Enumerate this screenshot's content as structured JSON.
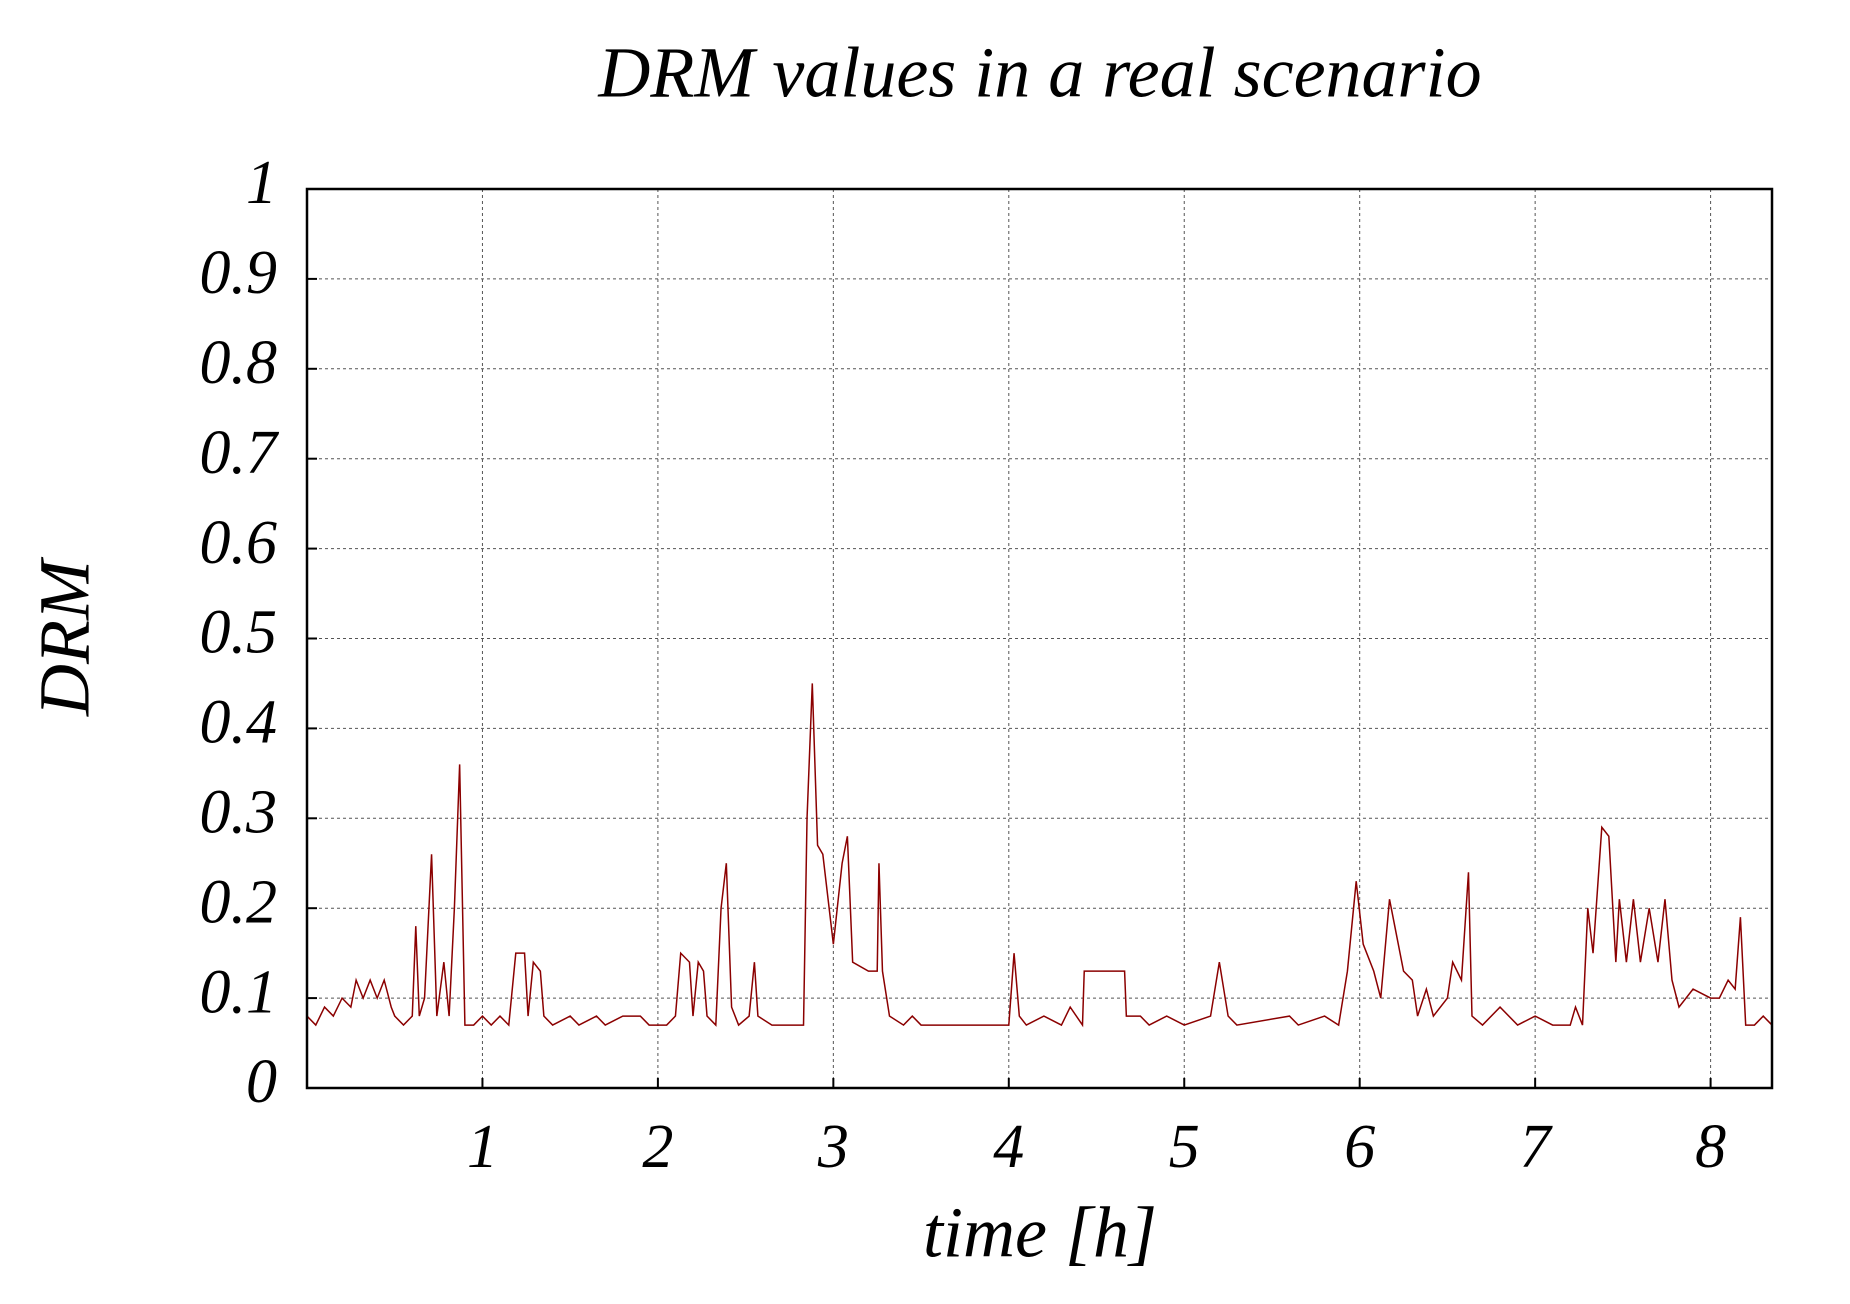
{
  "chart_data": {
    "type": "line",
    "title": "DRM values in a real scenario",
    "x_label": "time [h]",
    "y_label": "DRM",
    "xlim": [
      0,
      8.35
    ],
    "ylim": [
      0,
      1
    ],
    "xticks": [
      1,
      2,
      3,
      4,
      5,
      6,
      7,
      8
    ],
    "yticks": [
      0,
      0.1,
      0.2,
      0.3,
      0.4,
      0.5,
      0.6,
      0.7,
      0.8,
      0.9,
      1
    ],
    "grid": true,
    "x": [
      0,
      0.05,
      0.1,
      0.15,
      0.2,
      0.25,
      0.28,
      0.32,
      0.36,
      0.4,
      0.44,
      0.48,
      0.5,
      0.55,
      0.6,
      0.62,
      0.64,
      0.67,
      0.71,
      0.74,
      0.78,
      0.81,
      0.84,
      0.87,
      0.9,
      0.95,
      1.0,
      1.05,
      1.1,
      1.15,
      1.19,
      1.24,
      1.26,
      1.29,
      1.33,
      1.35,
      1.4,
      1.5,
      1.55,
      1.65,
      1.7,
      1.8,
      1.9,
      1.95,
      2.05,
      2.1,
      2.13,
      2.18,
      2.2,
      2.23,
      2.26,
      2.28,
      2.33,
      2.36,
      2.39,
      2.42,
      2.46,
      2.52,
      2.55,
      2.57,
      2.65,
      2.75,
      2.83,
      2.85,
      2.88,
      2.91,
      2.94,
      2.97,
      3.0,
      3.05,
      3.08,
      3.11,
      3.2,
      3.25,
      3.26,
      3.28,
      3.32,
      3.4,
      3.45,
      3.5,
      3.8,
      4.0,
      4.03,
      4.06,
      4.1,
      4.2,
      4.3,
      4.35,
      4.42,
      4.43,
      4.66,
      4.67,
      4.75,
      4.8,
      4.9,
      5.0,
      5.15,
      5.2,
      5.25,
      5.3,
      5.6,
      5.65,
      5.8,
      5.88,
      5.93,
      5.98,
      6.02,
      6.08,
      6.12,
      6.17,
      6.2,
      6.25,
      6.3,
      6.33,
      6.38,
      6.42,
      6.5,
      6.53,
      6.58,
      6.62,
      6.64,
      6.7,
      6.8,
      6.9,
      7.0,
      7.1,
      7.2,
      7.23,
      7.27,
      7.3,
      7.33,
      7.38,
      7.42,
      7.46,
      7.48,
      7.52,
      7.56,
      7.6,
      7.65,
      7.7,
      7.74,
      7.78,
      7.82,
      7.9,
      8.0,
      8.05,
      8.1,
      8.14,
      8.17,
      8.2,
      8.25,
      8.3,
      8.35
    ],
    "series": [
      {
        "color": "#8b0000",
        "values": [
          0.08,
          0.07,
          0.09,
          0.08,
          0.1,
          0.09,
          0.12,
          0.1,
          0.12,
          0.1,
          0.12,
          0.09,
          0.08,
          0.07,
          0.08,
          0.18,
          0.08,
          0.1,
          0.26,
          0.08,
          0.14,
          0.08,
          0.2,
          0.36,
          0.07,
          0.07,
          0.08,
          0.07,
          0.08,
          0.07,
          0.15,
          0.15,
          0.08,
          0.14,
          0.13,
          0.08,
          0.07,
          0.08,
          0.07,
          0.08,
          0.07,
          0.08,
          0.08,
          0.07,
          0.07,
          0.08,
          0.15,
          0.14,
          0.08,
          0.14,
          0.13,
          0.08,
          0.07,
          0.2,
          0.25,
          0.09,
          0.07,
          0.08,
          0.14,
          0.08,
          0.07,
          0.07,
          0.07,
          0.3,
          0.45,
          0.27,
          0.26,
          0.21,
          0.16,
          0.25,
          0.28,
          0.14,
          0.13,
          0.13,
          0.25,
          0.13,
          0.08,
          0.07,
          0.08,
          0.07,
          0.07,
          0.07,
          0.15,
          0.08,
          0.07,
          0.08,
          0.07,
          0.09,
          0.07,
          0.13,
          0.13,
          0.08,
          0.08,
          0.07,
          0.08,
          0.07,
          0.08,
          0.14,
          0.08,
          0.07,
          0.08,
          0.07,
          0.08,
          0.07,
          0.13,
          0.23,
          0.16,
          0.13,
          0.1,
          0.21,
          0.18,
          0.13,
          0.12,
          0.08,
          0.11,
          0.08,
          0.1,
          0.14,
          0.12,
          0.24,
          0.08,
          0.07,
          0.09,
          0.07,
          0.08,
          0.07,
          0.07,
          0.09,
          0.07,
          0.2,
          0.15,
          0.29,
          0.28,
          0.14,
          0.21,
          0.14,
          0.21,
          0.14,
          0.2,
          0.14,
          0.21,
          0.12,
          0.09,
          0.11,
          0.1,
          0.1,
          0.12,
          0.11,
          0.19,
          0.07,
          0.07,
          0.08,
          0.07
        ]
      }
    ]
  }
}
